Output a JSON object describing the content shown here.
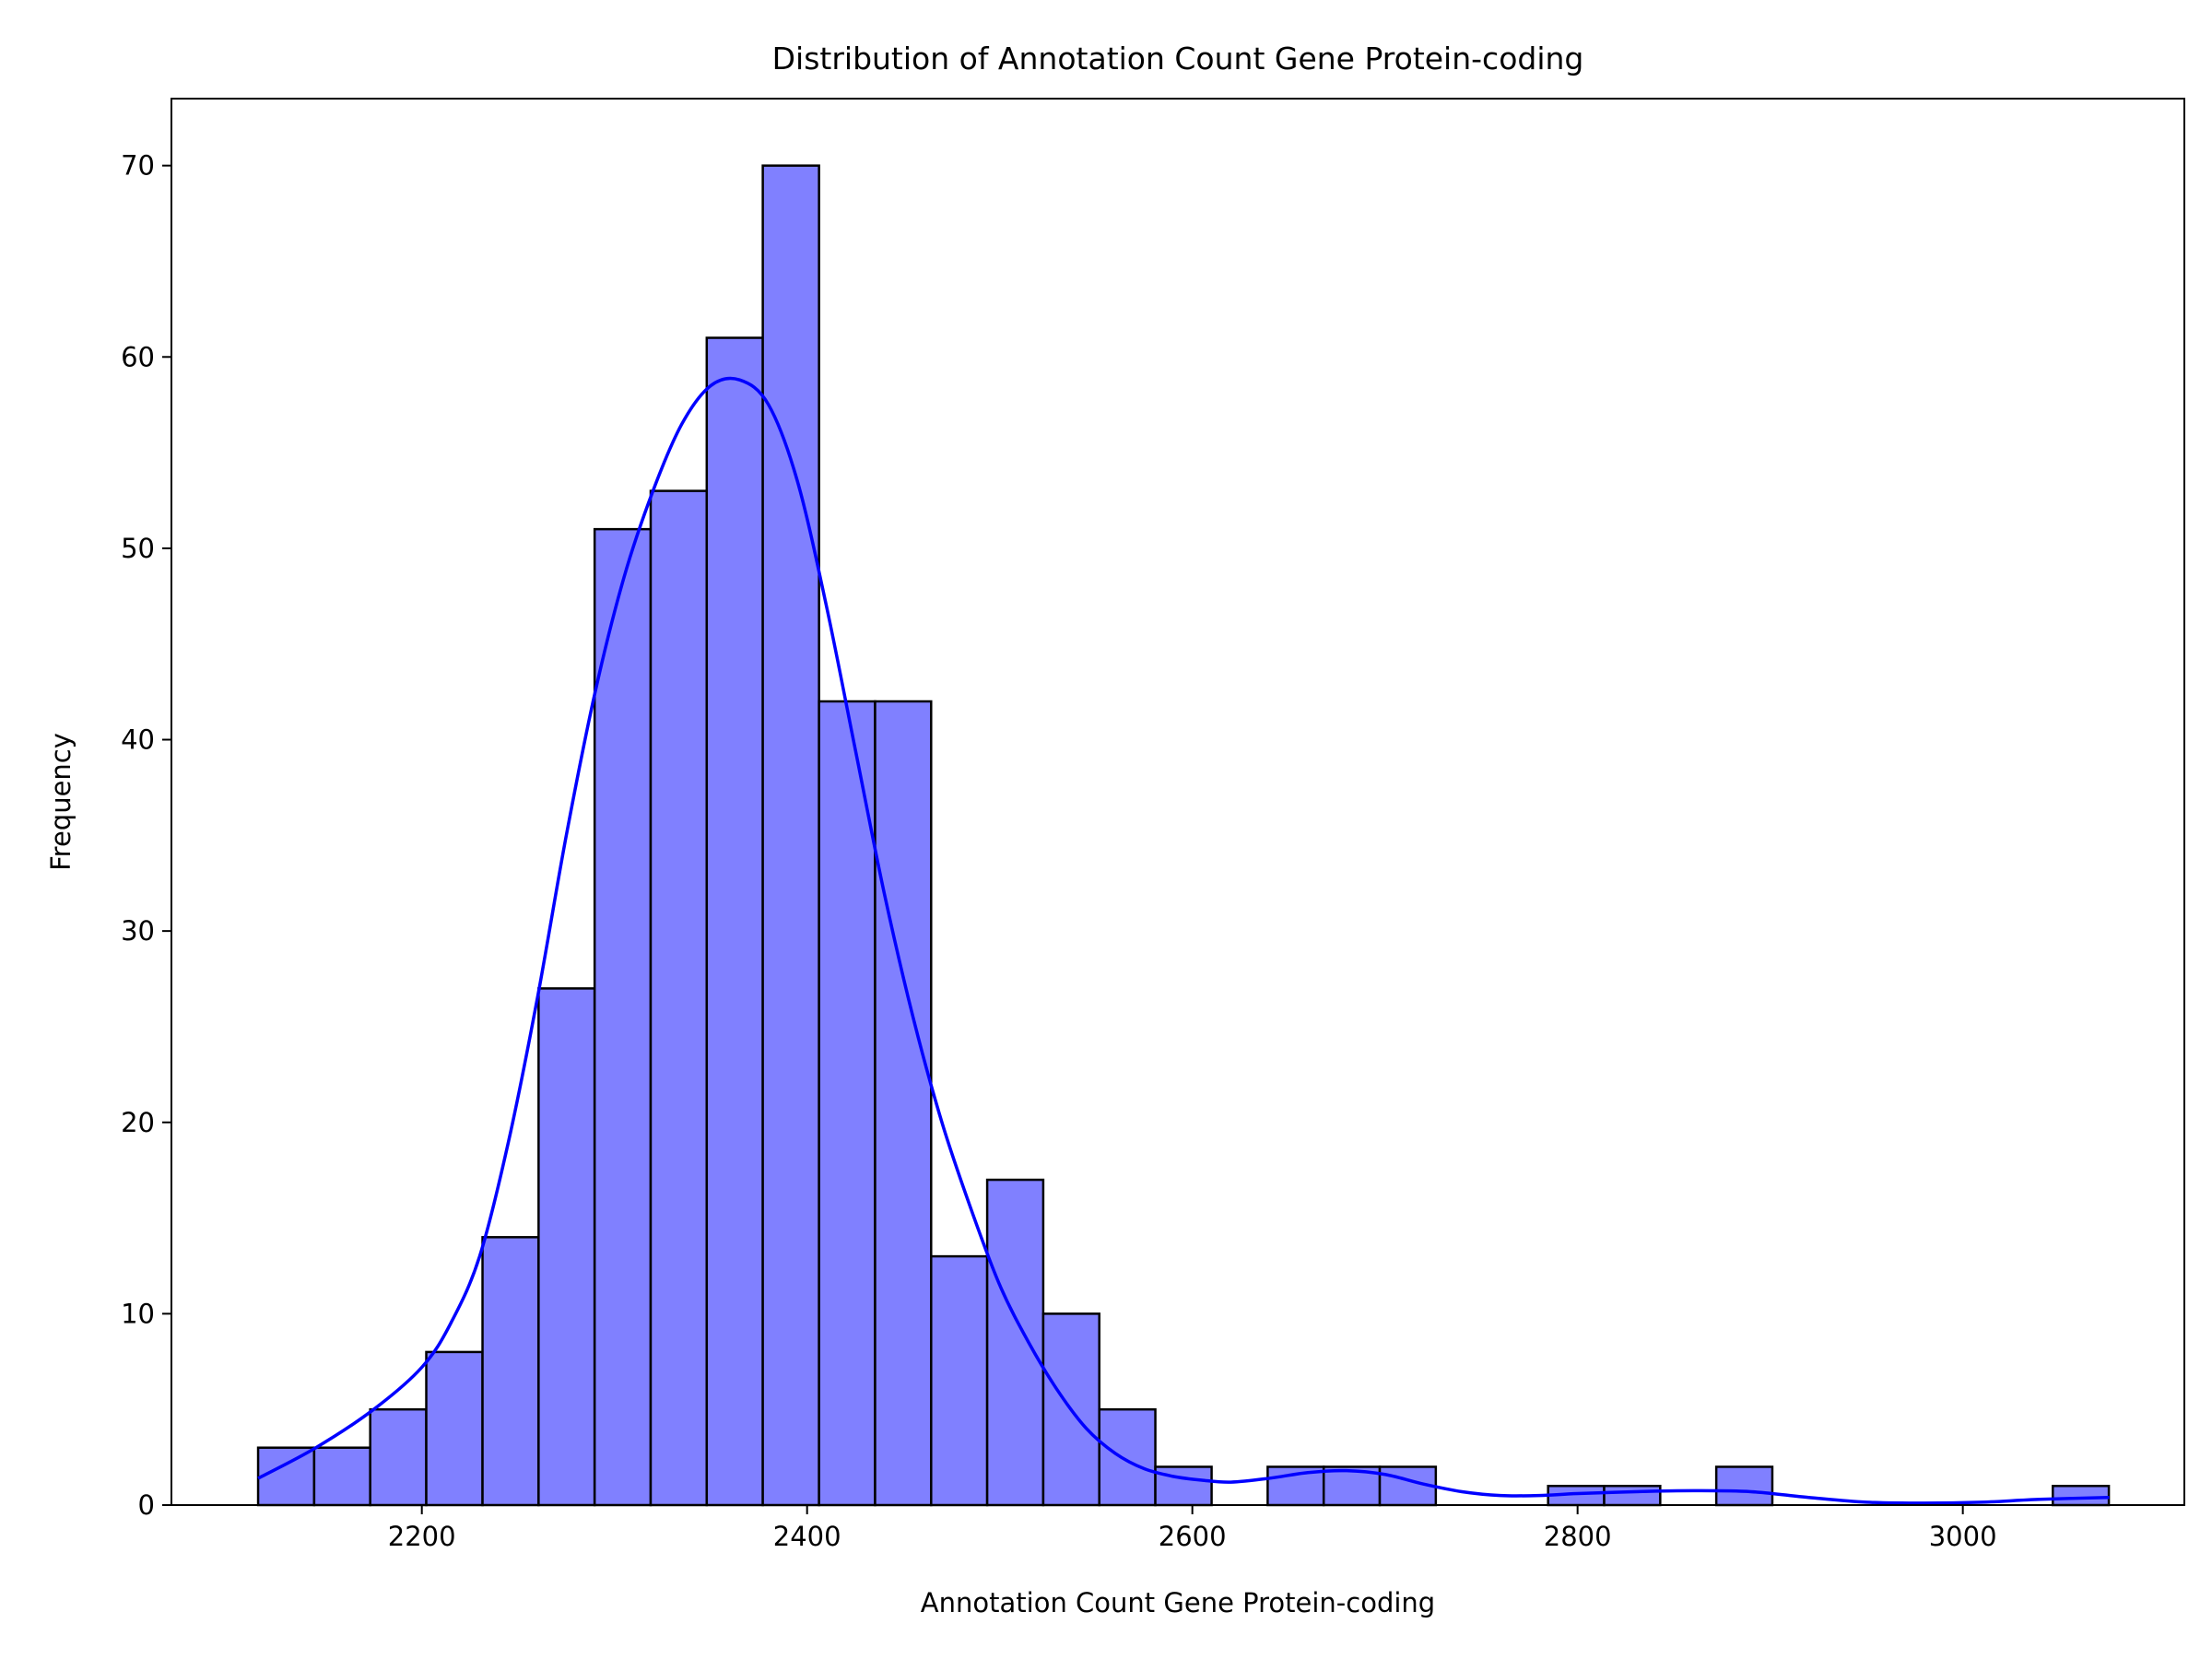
{
  "chart_data": {
    "type": "bar",
    "title": "Distribution of Annotation Count Gene Protein-coding",
    "xlabel": "Annotation Count Gene Protein-coding",
    "ylabel": "Frequency",
    "xlim": [
      2070,
      3115
    ],
    "ylim": [
      0,
      73.5
    ],
    "x_ticks": [
      2200,
      2400,
      2600,
      2800,
      3000
    ],
    "y_ticks": [
      0,
      10,
      20,
      30,
      40,
      50,
      60,
      70
    ],
    "grid": false,
    "bin_edges": [
      2115,
      2144.1,
      2173.2,
      2202.3,
      2231.5,
      2260.6,
      2289.7,
      2318.8,
      2347.9,
      2377.0,
      2406.2,
      2435.3,
      2464.4,
      2493.5,
      2522.6,
      2551.7,
      2580.8,
      2610.0,
      2639.1,
      2668.2,
      2697.3,
      2726.4,
      2755.5,
      2784.7,
      2813.8,
      2842.9,
      2872.0,
      2901.1,
      2930.2,
      2959.4,
      2988.5,
      3017.6,
      3046.7,
      3075.8
    ],
    "values": [
      3,
      3,
      5,
      8,
      14,
      27,
      51,
      53,
      61,
      70,
      42,
      42,
      13,
      17,
      10,
      5,
      2,
      0,
      2,
      2,
      2,
      0,
      0,
      1,
      1,
      0,
      2,
      0,
      0,
      0,
      0,
      0,
      1
    ],
    "bar_color": "#8080ff",
    "bar_edge_color": "#000000",
    "kde": {
      "color": "#0000ff",
      "x": [
        2115,
        2145,
        2175,
        2200,
        2215,
        2230,
        2245,
        2260,
        2275,
        2290,
        2305,
        2320,
        2335,
        2350,
        2365,
        2380,
        2395,
        2410,
        2425,
        2440,
        2455,
        2470,
        2485,
        2500,
        2515,
        2530,
        2545,
        2560,
        2575,
        2590,
        2605,
        2620,
        2640,
        2660,
        2680,
        2700,
        2720,
        2740,
        2760,
        2780,
        2800,
        2830,
        2860,
        2890,
        2920,
        2950,
        2980,
        3010,
        3040,
        3076
      ],
      "y": [
        1.4,
        3.0,
        5.0,
        7.2,
        9.5,
        13.0,
        19.0,
        26.5,
        35.0,
        42.5,
        48.5,
        53.0,
        56.5,
        58.5,
        58.8,
        57.5,
        53.5,
        47.0,
        39.5,
        32.0,
        25.5,
        20.0,
        15.5,
        11.5,
        8.5,
        6.0,
        4.0,
        2.7,
        1.9,
        1.5,
        1.3,
        1.2,
        1.4,
        1.7,
        1.8,
        1.6,
        1.1,
        0.7,
        0.5,
        0.5,
        0.6,
        0.7,
        0.75,
        0.7,
        0.4,
        0.15,
        0.1,
        0.15,
        0.3,
        0.4
      ]
    }
  }
}
